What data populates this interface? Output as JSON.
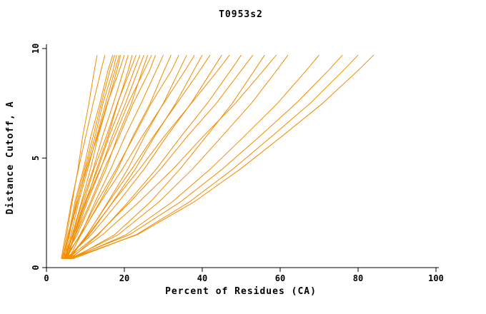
{
  "chart_data": {
    "type": "line",
    "title": "T0953s2",
    "xlabel": "Percent of Residues (CA)",
    "ylabel": "Distance Cutoff, A",
    "xlim": [
      0,
      100
    ],
    "ylim": [
      0,
      10
    ],
    "xticks": [
      "0",
      "20",
      "40",
      "60",
      "80",
      "100"
    ],
    "xtick_values": [
      0,
      20,
      40,
      60,
      80,
      100
    ],
    "yticks": [
      "0",
      "5",
      "10"
    ],
    "ytick_values": [
      0,
      5,
      10
    ],
    "grid": "off",
    "legend": "none",
    "line_color": "#f28c00",
    "axis_color": "#000000",
    "y_grid": [
      0.4,
      1.5,
      3,
      4.5,
      6,
      7.5,
      9,
      9.7
    ],
    "series": [
      {
        "x": [
          4.0,
          5.2,
          6.6,
          8.1,
          9.3,
          10.9,
          12.3,
          13.0
        ]
      },
      {
        "x": [
          4.5,
          5.7,
          7.3,
          9.5,
          11.4,
          13.7,
          15.8,
          17.0
        ]
      },
      {
        "x": [
          4.1,
          5.8,
          8.0,
          10.1,
          12.5,
          14.5,
          17.1,
          18.0
        ]
      },
      {
        "x": [
          5.0,
          6.6,
          9.0,
          11.3,
          13.3,
          15.7,
          18.1,
          19.0
        ]
      },
      {
        "x": [
          4.2,
          5.5,
          7.9,
          10.3,
          13.1,
          15.6,
          18.7,
          20.0
        ]
      },
      {
        "x": [
          4.8,
          6.8,
          9.2,
          12.0,
          14.4,
          17.2,
          19.8,
          21.0
        ]
      },
      {
        "x": [
          4.0,
          7.0,
          10.2,
          12.9,
          15.8,
          18.3,
          21.0,
          22.0
        ]
      },
      {
        "x": [
          5.5,
          7.0,
          9.6,
          12.2,
          15.4,
          18.2,
          21.5,
          23.0
        ]
      },
      {
        "x": [
          4.5,
          6.9,
          9.9,
          13.2,
          16.1,
          19.4,
          22.5,
          24.0
        ]
      },
      {
        "x": [
          5.0,
          7.5,
          10.5,
          13.9,
          16.9,
          20.3,
          23.5,
          25.0
        ]
      },
      {
        "x": [
          4.3,
          7.9,
          11.6,
          15.3,
          18.3,
          21.8,
          24.6,
          26.0
        ]
      },
      {
        "x": [
          5.2,
          7.3,
          10.1,
          13.8,
          17.5,
          21.0,
          25.1,
          27.0
        ]
      },
      {
        "x": [
          4.6,
          7.5,
          11.3,
          14.8,
          18.7,
          22.3,
          26.5,
          28.0
        ]
      },
      {
        "x": [
          5.8,
          8.8,
          12.5,
          16.5,
          20.2,
          24.3,
          28.2,
          30.0
        ]
      },
      {
        "x": [
          4.4,
          8.9,
          13.7,
          18.3,
          22.2,
          26.6,
          30.2,
          32.0
        ]
      },
      {
        "x": [
          5.0,
          8.6,
          13.0,
          17.9,
          22.5,
          26.9,
          32.1,
          34.0
        ]
      },
      {
        "x": [
          5.5,
          10.5,
          15.8,
          20.9,
          25.2,
          30.0,
          34.1,
          36.0
        ]
      },
      {
        "x": [
          4.7,
          8.8,
          13.9,
          19.5,
          24.6,
          30.1,
          35.6,
          38.0
        ]
      },
      {
        "x": [
          5.3,
          11.0,
          17.0,
          22.8,
          27.8,
          33.2,
          37.8,
          40.0
        ]
      },
      {
        "x": [
          6.0,
          10.4,
          16.0,
          21.9,
          27.5,
          33.5,
          39.4,
          42.0
        ]
      },
      {
        "x": [
          5.0,
          11.5,
          18.5,
          25.1,
          30.9,
          37.1,
          42.5,
          45.0
        ]
      },
      {
        "x": [
          5.6,
          10.7,
          17.1,
          23.9,
          30.3,
          37.2,
          44.0,
          47.0
        ]
      },
      {
        "x": [
          6.2,
          13.3,
          21.0,
          28.2,
          34.6,
          41.3,
          47.3,
          50.0
        ]
      },
      {
        "x": [
          5.4,
          13.1,
          21.5,
          29.3,
          36.2,
          43.6,
          50.0,
          53.0
        ]
      },
      {
        "x": [
          6.5,
          17.5,
          26.7,
          34.3,
          41.1,
          47.7,
          53.4,
          56.0
        ]
      },
      {
        "x": [
          5.8,
          14.4,
          23.8,
          32.5,
          40.3,
          48.5,
          55.7,
          59.0
        ]
      },
      {
        "x": [
          6.0,
          18.4,
          28.9,
          37.5,
          45.1,
          52.6,
          59.1,
          62.0
        ]
      },
      {
        "x": [
          6.3,
          20.4,
          32.3,
          42.1,
          50.8,
          59.3,
          66.7,
          70.0
        ]
      },
      {
        "x": [
          5.7,
          21.3,
          34.4,
          45.2,
          54.8,
          64.1,
          72.4,
          76.0
        ]
      },
      {
        "x": [
          6.8,
          23.0,
          36.7,
          47.9,
          57.9,
          67.7,
          76.2,
          80.0
        ]
      },
      {
        "x": [
          6.1,
          23.3,
          37.9,
          49.8,
          60.5,
          70.9,
          80.0,
          84.0
        ]
      },
      {
        "x": [
          4.9,
          5.9,
          7.6,
          9.8,
          12.0,
          14.1,
          16.3,
          17.5
        ]
      },
      {
        "x": [
          3.8,
          4.9,
          6.4,
          8.2,
          10.1,
          12.0,
          14.0,
          15.0
        ]
      },
      {
        "x": [
          5.1,
          6.3,
          8.3,
          10.6,
          12.9,
          15.2,
          17.6,
          18.7
        ]
      }
    ]
  }
}
